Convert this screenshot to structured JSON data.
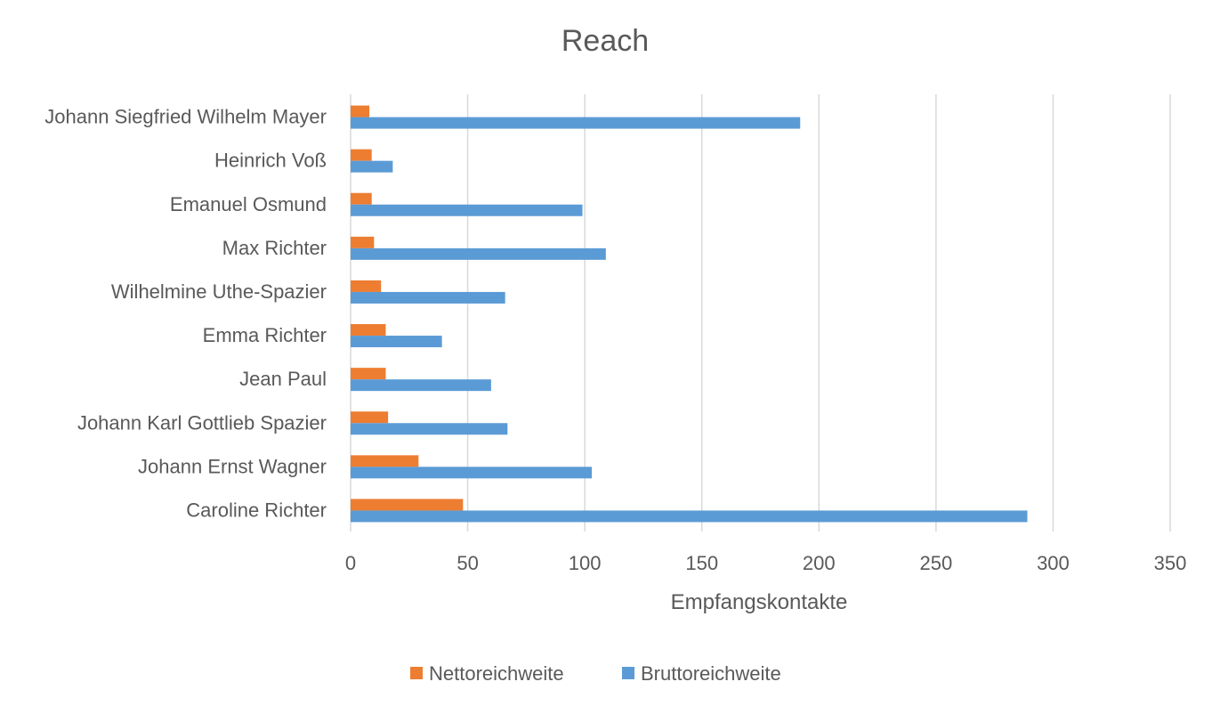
{
  "chart_data": {
    "type": "bar",
    "orientation": "horizontal",
    "title": "Reach",
    "xlabel": "Empfangskontakte",
    "ylabel": "",
    "xlim": [
      0,
      350
    ],
    "x_ticks": [
      0,
      50,
      100,
      150,
      200,
      250,
      300,
      350
    ],
    "grid": "vertical",
    "legend_position": "bottom",
    "categories": [
      "Johann Siegfried Wilhelm Mayer",
      "Heinrich Voß",
      "Emanuel Osmund",
      "Max Richter",
      "Wilhelmine Uthe-Spazier",
      "Emma Richter",
      "Jean Paul",
      "Johann Karl Gottlieb Spazier",
      "Johann Ernst Wagner",
      "Caroline Richter"
    ],
    "series": [
      {
        "name": "Nettoreichweite",
        "color": "#ed7d31",
        "values": [
          8,
          9,
          9,
          10,
          13,
          15,
          15,
          16,
          29,
          48
        ]
      },
      {
        "name": "Bruttoreichweite",
        "color": "#5b9bd5",
        "values": [
          192,
          18,
          99,
          109,
          66,
          39,
          60,
          67,
          103,
          289
        ]
      }
    ]
  }
}
